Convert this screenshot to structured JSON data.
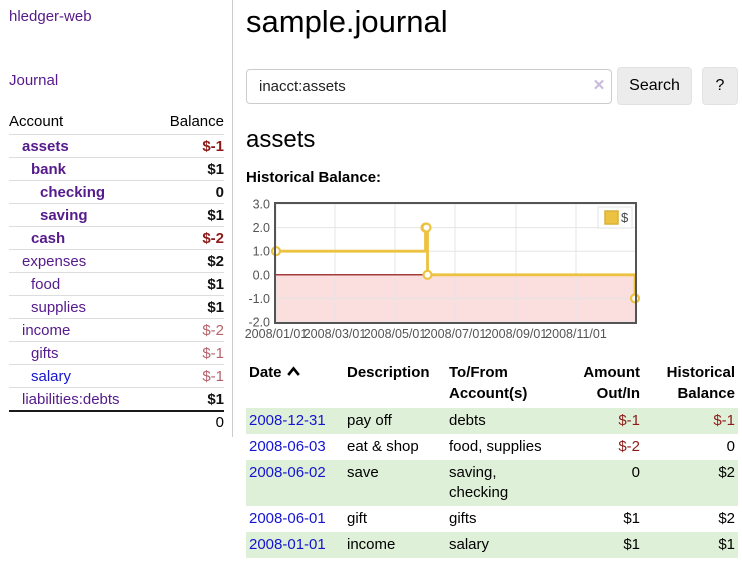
{
  "sidebar": {
    "brand": "hledger-web",
    "nav": {
      "journal": "Journal"
    },
    "accounts": {
      "header": {
        "account": "Account",
        "balance": "Balance"
      },
      "rows": [
        {
          "name": "assets",
          "balance": "$-1",
          "indent": 1,
          "emph": "bold",
          "lstyle": "visited",
          "bstyle": "neg-strong"
        },
        {
          "name": "bank",
          "balance": "$1",
          "indent": 2,
          "emph": "bold",
          "lstyle": "visited",
          "bstyle": "pos"
        },
        {
          "name": "checking",
          "balance": "0",
          "indent": 3,
          "emph": "bold",
          "lstyle": "visited",
          "bstyle": "pos"
        },
        {
          "name": "saving",
          "balance": "$1",
          "indent": 3,
          "emph": "bold",
          "lstyle": "visited",
          "bstyle": "pos"
        },
        {
          "name": "cash",
          "balance": "$-2",
          "indent": 2,
          "emph": "bold",
          "lstyle": "visited",
          "bstyle": "neg-strong"
        },
        {
          "name": "expenses",
          "balance": "$2",
          "indent": 1,
          "emph": "plain",
          "lstyle": "visited",
          "bstyle": "pos"
        },
        {
          "name": "food",
          "balance": "$1",
          "indent": 2,
          "emph": "plain",
          "lstyle": "visited",
          "bstyle": "pos"
        },
        {
          "name": "supplies",
          "balance": "$1",
          "indent": 2,
          "emph": "plain",
          "lstyle": "visited",
          "bstyle": "pos"
        },
        {
          "name": "income",
          "balance": "$-2",
          "indent": 1,
          "emph": "plain",
          "lstyle": "visited",
          "bstyle": "neg-soft"
        },
        {
          "name": "gifts",
          "balance": "$-1",
          "indent": 2,
          "emph": "plain",
          "lstyle": "visited",
          "bstyle": "neg-soft"
        },
        {
          "name": "salary",
          "balance": "$-1",
          "indent": 2,
          "emph": "plain",
          "lstyle": "new",
          "bstyle": "neg-soft"
        },
        {
          "name": "liabilities:debts",
          "balance": "$1",
          "indent": 1,
          "emph": "plain",
          "lstyle": "visited",
          "bstyle": "pos"
        }
      ],
      "total": "0"
    }
  },
  "main": {
    "title": "sample.journal",
    "search": {
      "value": "inacct:assets",
      "clear_icon": "✕",
      "button": "Search",
      "help": "?"
    },
    "account_heading": "assets",
    "chart_label": "Historical Balance:",
    "transactions": {
      "headers": {
        "date": "Date",
        "description": "Description",
        "accounts": "To/From Account(s)",
        "amount": "Amount Out/In",
        "historical": "Historical Balance"
      },
      "rows": [
        {
          "date": "2008-12-31",
          "description": "pay off",
          "accounts": "debts",
          "amount": "$-1",
          "amount_sign": "neg",
          "historical": "$-1",
          "historical_sign": "neg"
        },
        {
          "date": "2008-06-03",
          "description": "eat & shop",
          "accounts": "food, supplies",
          "amount": "$-2",
          "amount_sign": "neg",
          "historical": "0",
          "historical_sign": "pos"
        },
        {
          "date": "2008-06-02",
          "description": "save",
          "accounts": "saving, checking",
          "amount": "0",
          "amount_sign": "pos",
          "historical": "$2",
          "historical_sign": "pos"
        },
        {
          "date": "2008-06-01",
          "description": "gift",
          "accounts": "gifts",
          "amount": "$1",
          "amount_sign": "pos",
          "historical": "$2",
          "historical_sign": "pos"
        },
        {
          "date": "2008-01-01",
          "description": "income",
          "accounts": "salary",
          "amount": "$1",
          "amount_sign": "pos",
          "historical": "$1",
          "historical_sign": "pos"
        }
      ]
    }
  },
  "colors": {
    "link_visited": "#551a8b",
    "link_new": "#1414d2",
    "negative_strong": "#8f1a1a",
    "negative_soft": "#b4636b",
    "row_stripe_green": "#dff0d8",
    "series_gold": "#edc240",
    "zero_line": "#8b0000",
    "negative_region": "#fbdede",
    "grid_line": "#e5e5e5",
    "chart_border": "#545454"
  },
  "chart_data": {
    "type": "line",
    "title": "Historical Balance",
    "steps": true,
    "x_range": [
      "2008/01/01",
      "2008/12/31"
    ],
    "y_range": [
      -2,
      3
    ],
    "y_ticks": [
      "3.0",
      "2.0",
      "1.0",
      "0.0",
      "-1.0",
      "-2.0"
    ],
    "x_ticks": [
      "2008/01/01",
      "2008/03/01",
      "2008/05/01",
      "2008/07/01",
      "2008/09/01",
      "2008/11/01"
    ],
    "series": [
      {
        "name": "$",
        "color": "#edc240",
        "points": [
          [
            "2008-01-01",
            1
          ],
          [
            "2008-06-01",
            2
          ],
          [
            "2008-06-02",
            2
          ],
          [
            "2008-06-03",
            0
          ],
          [
            "2008-12-31",
            -1
          ]
        ]
      }
    ],
    "legend": {
      "label": "$",
      "position": "top-right"
    },
    "grid": true,
    "negative_region_below": 0
  }
}
